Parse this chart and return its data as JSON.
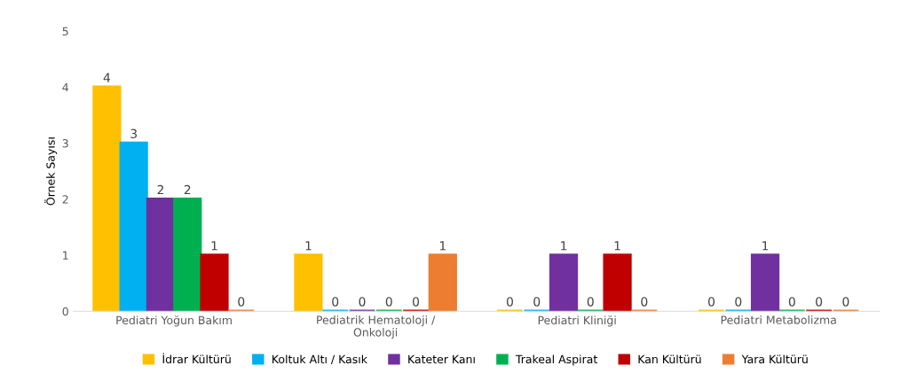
{
  "chart_data": {
    "type": "bar",
    "ylabel": "Örnek Sayısı",
    "categories": [
      "Pediatri Yoğun Bakım",
      "Pediatrik Hematoloji /\nOnkoloji",
      "Pediatri Kliniği",
      "Pediatri Metabolizma"
    ],
    "series": [
      {
        "name": "İdrar Kültürü",
        "color": "#ffc000",
        "values": [
          4,
          1,
          0,
          0
        ]
      },
      {
        "name": "Koltuk Altı / Kasık",
        "color": "#00b0f0",
        "values": [
          3,
          0,
          0,
          0
        ]
      },
      {
        "name": "Kateter Kanı",
        "color": "#7030a0",
        "values": [
          2,
          0,
          1,
          1
        ]
      },
      {
        "name": "Trakeal Aspirat",
        "color": "#00b050",
        "values": [
          2,
          0,
          0,
          0
        ]
      },
      {
        "name": "Kan Kültürü",
        "color": "#c00000",
        "values": [
          1,
          0,
          1,
          0
        ]
      },
      {
        "name": "Yara Kültürü",
        "color": "#ed7d31",
        "values": [
          0,
          1,
          0,
          0
        ]
      }
    ],
    "ylim": [
      0,
      5
    ],
    "yticks": [
      0,
      1,
      2,
      3,
      4,
      5
    ],
    "grid": false,
    "legend": "bottom",
    "data_labels": true
  }
}
